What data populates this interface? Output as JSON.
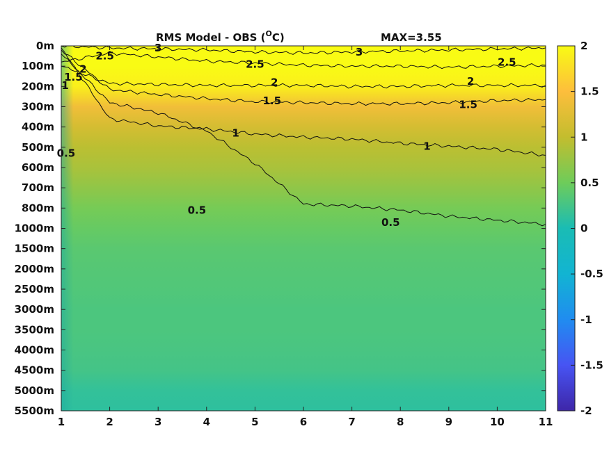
{
  "chart_data": {
    "type": "heatmap",
    "title": "RMS Model - OBS (",
    "title_unit_sup": "O",
    "title_unit_end": "C)",
    "max_label": "MAX=3.55",
    "x": [
      1,
      2,
      3,
      4,
      5,
      6,
      7,
      8,
      9,
      10,
      11
    ],
    "x_tick_labels": [
      "1",
      "2",
      "3",
      "4",
      "5",
      "6",
      "7",
      "8",
      "9",
      "10",
      "11"
    ],
    "xlim": [
      1,
      11
    ],
    "y_tick_labels": [
      "0m",
      "100m",
      "200m",
      "300m",
      "400m",
      "500m",
      "600m",
      "700m",
      "800m",
      "1000m",
      "1500m",
      "2000m",
      "2500m",
      "3000m",
      "3500m",
      "4000m",
      "4500m",
      "5000m",
      "5500m"
    ],
    "colorbar": {
      "min": -2,
      "max": 2,
      "tick_labels": [
        "2",
        "1.5",
        "1",
        "0.5",
        "0",
        "-0.5",
        "-1",
        "-1.5",
        "-2"
      ],
      "colormap": "parula"
    },
    "depth_profile": [
      {
        "depth": "0m",
        "value": 2.6
      },
      {
        "depth": "100m",
        "value": 2.4
      },
      {
        "depth": "200m",
        "value": 1.9
      },
      {
        "depth": "300m",
        "value": 1.4
      },
      {
        "depth": "400m",
        "value": 1.15
      },
      {
        "depth": "500m",
        "value": 0.95
      },
      {
        "depth": "600m",
        "value": 0.85
      },
      {
        "depth": "700m",
        "value": 0.7
      },
      {
        "depth": "800m",
        "value": 0.55
      },
      {
        "depth": "1000m",
        "value": 0.45
      },
      {
        "depth": "1500m",
        "value": 0.38
      },
      {
        "depth": "2000m",
        "value": 0.35
      },
      {
        "depth": "2500m",
        "value": 0.33
      },
      {
        "depth": "3000m",
        "value": 0.3
      },
      {
        "depth": "3500m",
        "value": 0.3
      },
      {
        "depth": "4000m",
        "value": 0.28
      },
      {
        "depth": "4500m",
        "value": 0.25
      },
      {
        "depth": "5000m",
        "value": 0.15
      },
      {
        "depth": "5500m",
        "value": 0.12
      }
    ],
    "contours": [
      {
        "level": 0.5,
        "label": "0.5",
        "depth_index": [
          0.4,
          2.8,
          3.3,
          4.2,
          5.8,
          7.8,
          7.9,
          8.1,
          8.4,
          8.6,
          8.8
        ]
      },
      {
        "level": 1,
        "label": "1",
        "depth_index": [
          0.1,
          3.6,
          3.95,
          4.1,
          4.35,
          4.5,
          4.6,
          4.8,
          4.95,
          5.1,
          5.4
        ]
      },
      {
        "level": 1.5,
        "label": "1.5",
        "depth_index": [
          0.2,
          2.15,
          2.4,
          2.6,
          2.75,
          2.8,
          2.85,
          2.85,
          2.8,
          2.7,
          2.65
        ]
      },
      {
        "level": 2,
        "label": "2",
        "depth_index": [
          1.0,
          1.85,
          1.9,
          1.95,
          1.95,
          1.95,
          2.0,
          2.0,
          1.95,
          1.95,
          1.95
        ]
      },
      {
        "level": 2.5,
        "label": "2.5",
        "depth_index": [
          0.8,
          0.35,
          0.55,
          0.75,
          0.85,
          0.95,
          1.0,
          1.0,
          1.05,
          1.0,
          0.95
        ]
      },
      {
        "level": 3,
        "label": "3",
        "depth_index": [
          0.0,
          0.1,
          0.15,
          0.2,
          0.3,
          0.35,
          0.3,
          0.25,
          0.2,
          0.15,
          0.1
        ]
      }
    ],
    "contour_label_positions": [
      {
        "label": "3",
        "x": 3.0,
        "depth_index": 0.1
      },
      {
        "label": "3",
        "x": 7.15,
        "depth_index": 0.3
      },
      {
        "label": "2.5",
        "x": 1.9,
        "depth_index": 0.5
      },
      {
        "label": "2.5",
        "x": 5.0,
        "depth_index": 0.9
      },
      {
        "label": "2.5",
        "x": 10.2,
        "depth_index": 0.8
      },
      {
        "label": "2",
        "x": 1.45,
        "depth_index": 1.15
      },
      {
        "label": "2",
        "x": 5.4,
        "depth_index": 1.8
      },
      {
        "label": "2",
        "x": 9.45,
        "depth_index": 1.75
      },
      {
        "label": "1.5",
        "x": 1.25,
        "depth_index": 1.55
      },
      {
        "label": "1.5",
        "x": 5.35,
        "depth_index": 2.7
      },
      {
        "label": "1.5",
        "x": 9.4,
        "depth_index": 2.9
      },
      {
        "label": "1",
        "x": 1.08,
        "depth_index": 1.95
      },
      {
        "label": "1",
        "x": 4.6,
        "depth_index": 4.3
      },
      {
        "label": "1",
        "x": 8.55,
        "depth_index": 4.95
      },
      {
        "label": "0.5",
        "x": 1.1,
        "depth_index": 5.3
      },
      {
        "label": "0.5",
        "x": 3.8,
        "depth_index": 8.1
      },
      {
        "label": "0.5",
        "x": 7.8,
        "depth_index": 8.7
      }
    ]
  }
}
